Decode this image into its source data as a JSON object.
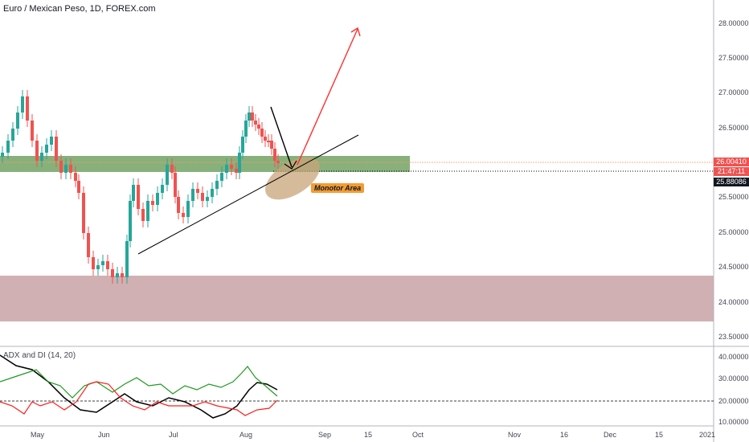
{
  "header": {
    "title": "Euro / Mexican Peso, 1D, FOREX.com"
  },
  "price_axis": {
    "ticks": [
      "28.00000",
      "27.50000",
      "27.00000",
      "26.50000",
      "26.00000",
      "25.50000",
      "25.00000",
      "24.50000",
      "24.00000",
      "23.50000"
    ],
    "current_price": "26.00410",
    "countdown": "21:47:11",
    "line_price": "25.88086"
  },
  "indicator": {
    "title": "ADX and DI (14, 20)",
    "ticks": [
      "40.00000",
      "30.00000",
      "20.00000",
      "10.00000"
    ]
  },
  "time_axis": {
    "labels": [
      "May",
      "Jun",
      "Jul",
      "Aug",
      "Sep",
      "15",
      "Oct",
      "Nov",
      "16",
      "Dec",
      "15",
      "2021"
    ]
  },
  "annotation": {
    "text": "Monotor Area"
  },
  "colors": {
    "up": "#26a69a",
    "down": "#ef5350",
    "support_zone": "#6a9c5a",
    "demand_zone": "#c9a2a6",
    "ellipse": "#c8a47a",
    "arrow_up": "#ff2f2f",
    "adx": "#000000",
    "di_plus": "#1f9a1f",
    "di_minus": "#ff1e1e"
  }
}
